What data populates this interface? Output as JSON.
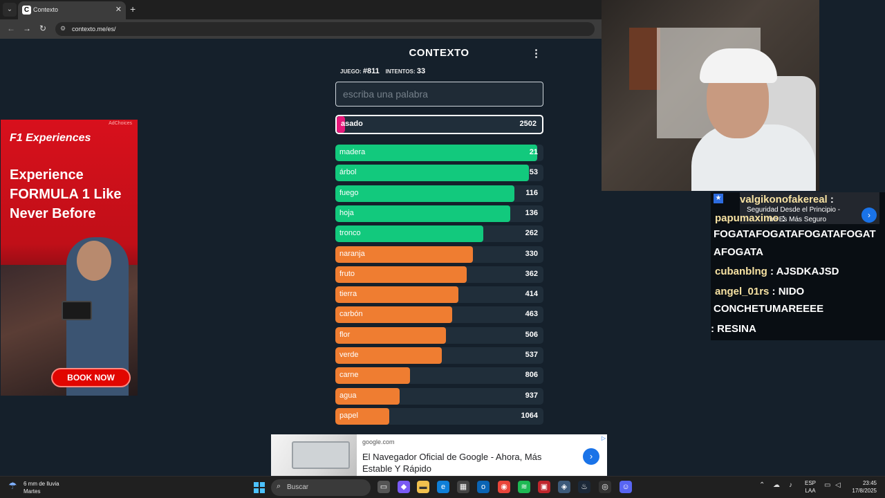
{
  "browser": {
    "tab_title": "Contexto",
    "url": "contexto.me/es/",
    "tab_close": "✕",
    "new_tab": "+",
    "back": "←",
    "forward": "→",
    "reload": "↻"
  },
  "game": {
    "title": "CONTEXTO",
    "menu": "⋮",
    "game_label": "JUEGO:",
    "game_number": "#811",
    "attempts_label": "INTENTOS:",
    "attempts_count": "33",
    "input_placeholder": "escriba una palabra",
    "current_guess": {
      "word": "asado",
      "rank": "2502",
      "fill": 0.04,
      "color": "#e5197a"
    },
    "guesses": [
      {
        "word": "madera",
        "rank": "21",
        "fill": 0.97,
        "color": "#12c97d"
      },
      {
        "word": "árbol",
        "rank": "53",
        "fill": 0.93,
        "color": "#12c97d"
      },
      {
        "word": "fuego",
        "rank": "116",
        "fill": 0.86,
        "color": "#12c97d"
      },
      {
        "word": "hoja",
        "rank": "136",
        "fill": 0.84,
        "color": "#12c97d"
      },
      {
        "word": "tronco",
        "rank": "262",
        "fill": 0.71,
        "color": "#12c97d"
      },
      {
        "word": "naranja",
        "rank": "330",
        "fill": 0.66,
        "color": "#ef7d31"
      },
      {
        "word": "fruto",
        "rank": "362",
        "fill": 0.63,
        "color": "#ef7d31"
      },
      {
        "word": "tierra",
        "rank": "414",
        "fill": 0.59,
        "color": "#ef7d31"
      },
      {
        "word": "carbón",
        "rank": "463",
        "fill": 0.56,
        "color": "#ef7d31"
      },
      {
        "word": "flor",
        "rank": "506",
        "fill": 0.53,
        "color": "#ef7d31"
      },
      {
        "word": "verde",
        "rank": "537",
        "fill": 0.51,
        "color": "#ef7d31"
      },
      {
        "word": "carne",
        "rank": "806",
        "fill": 0.36,
        "color": "#ef7d31"
      },
      {
        "word": "agua",
        "rank": "937",
        "fill": 0.31,
        "color": "#ef7d31"
      },
      {
        "word": "papel",
        "rank": "1064",
        "fill": 0.26,
        "color": "#ef7d31"
      }
    ]
  },
  "ad_left": {
    "choices": "AdChoices",
    "brand": "F1 Experiences",
    "headline": "Experience FORMULA 1 Like Never Before",
    "cta": "BOOK NOW"
  },
  "chat": {
    "ad_text1": "Seguridad Desde el Principio -",
    "ad_text2": "me Es Más Seguro",
    "lines": [
      {
        "user": "valgikonofakereal",
        "msg": " :"
      },
      {
        "user": "papumaximo",
        "msg": " :"
      },
      {
        "user": "",
        "msg": "FOGATAFOGATAFOGATAFOGAT"
      },
      {
        "user": "",
        "msg": "AFOGATA"
      },
      {
        "user": "cubanblng",
        "msg": " : AJSDKAJSD"
      },
      {
        "user": "angel_01rs",
        "msg": " : NIDO"
      },
      {
        "user": "",
        "msg": "CONCHETUMAREEEE"
      },
      {
        "user": "",
        "msg": ": RESINA"
      }
    ]
  },
  "ad_bottom": {
    "domain": "google.com",
    "title": "El Navegador Oficial de Google - Ahora, Más Estable Y Rápido",
    "go": "›"
  },
  "taskbar": {
    "weather_line1": "6 mm de lluvia",
    "weather_line2": "Martes",
    "search": "Buscar",
    "lang1": "ESP",
    "lang2": "LAA",
    "time": "23:45",
    "date": "17/8/2025"
  },
  "colors": {
    "background": "#15202b",
    "green": "#12c97d",
    "orange": "#ef7d31",
    "pink": "#e5197a"
  }
}
